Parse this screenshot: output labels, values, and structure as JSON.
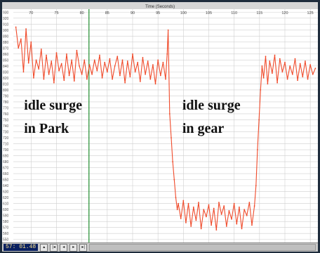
{
  "status_bar": {
    "time": "57: 01.48",
    "buttons": [
      "icon-first",
      "icon-prev",
      "icon-next",
      "icon-last"
    ]
  },
  "colors": {
    "trace": "#f04a2a",
    "marker": "#1e8c2e",
    "grid": "#cfcfcf",
    "frame": "#1e2c3c"
  },
  "chart_data": {
    "type": "line",
    "title": "",
    "xlabel": "Time (Seconds)",
    "ylabel": "",
    "x_ticks": [
      70,
      75,
      80,
      85,
      90,
      95,
      100,
      105,
      110,
      115,
      120,
      125
    ],
    "xlim": [
      66.5,
      126.5
    ],
    "ylim": [
      545,
      935
    ],
    "y_ticks": [
      550,
      560,
      570,
      580,
      590,
      600,
      610,
      620,
      630,
      640,
      650,
      660,
      670,
      680,
      690,
      700,
      710,
      720,
      730,
      740,
      750,
      760,
      770,
      780,
      790,
      800,
      810,
      820,
      830,
      840,
      850,
      860,
      870,
      880,
      890,
      900,
      910,
      920,
      930
    ],
    "grid": true,
    "cursor_x": 81.4,
    "annotations": [
      {
        "text": "idle surge",
        "x": 68.6,
        "y": 767
      },
      {
        "text": "in Park",
        "x": 68.6,
        "y": 728
      },
      {
        "text": "idle surge",
        "x": 99.8,
        "y": 767
      },
      {
        "text": "in gear",
        "x": 99.8,
        "y": 728
      }
    ],
    "series": [
      {
        "x": [
          67.0,
          67.5,
          68.0,
          68.5,
          69.0,
          69.5,
          70.0,
          70.5,
          71.0,
          71.5,
          72.0,
          72.5,
          73.0,
          73.5,
          74.0,
          74.5,
          75.0,
          75.5,
          76.0,
          76.5,
          77.0,
          77.5,
          78.0,
          78.5,
          79.0,
          79.5,
          80.0,
          80.5,
          81.0,
          81.5,
          82.0,
          82.5,
          83.0,
          83.5,
          84.0,
          84.5,
          85.0,
          85.5,
          86.0,
          86.5,
          87.0,
          87.5,
          88.0,
          88.5,
          89.0,
          89.5,
          90.0,
          90.5,
          91.0,
          91.5,
          92.0,
          92.5,
          93.0,
          93.5,
          94.0,
          94.5,
          95.0,
          95.5,
          96.0,
          96.5,
          96.8,
          97.0,
          97.3,
          97.6,
          97.9,
          98.2,
          98.5,
          98.8,
          99.0,
          99.5,
          100.0,
          100.5,
          101.0,
          101.5,
          102.0,
          102.5,
          103.0,
          103.5,
          104.0,
          104.5,
          105.0,
          105.5,
          106.0,
          106.5,
          107.0,
          107.5,
          108.0,
          108.5,
          109.0,
          109.5,
          110.0,
          110.5,
          111.0,
          111.5,
          112.0,
          112.5,
          113.0,
          113.5,
          114.0,
          114.3,
          114.6,
          114.9,
          115.2,
          115.5,
          115.8,
          116.2,
          116.6,
          117.0,
          117.5,
          118.0,
          118.5,
          119.0,
          119.5,
          120.0,
          120.5,
          121.0,
          121.5,
          122.0,
          122.5,
          123.0,
          123.5,
          124.0,
          124.5,
          125.0,
          125.5,
          126.0
        ],
        "y": [
          905,
          870,
          885,
          830,
          902,
          845,
          880,
          820,
          850,
          835,
          868,
          818,
          858,
          826,
          848,
          812,
          862,
          832,
          844,
          816,
          860,
          824,
          850,
          815,
          866,
          840,
          826,
          850,
          818,
          842,
          826,
          850,
          832,
          858,
          820,
          846,
          830,
          852,
          818,
          840,
          856,
          824,
          850,
          812,
          848,
          822,
          860,
          830,
          846,
          814,
          854,
          826,
          848,
          818,
          842,
          810,
          850,
          824,
          846,
          818,
          860,
          900,
          760,
          720,
          680,
          650,
          620,
          600,
          610,
          585,
          615,
          578,
          610,
          572,
          604,
          582,
          612,
          568,
          600,
          588,
          608,
          574,
          602,
          566,
          612,
          592,
          606,
          572,
          598,
          584,
          610,
          576,
          604,
          568,
          600,
          590,
          612,
          574,
          606,
          640,
          700,
          750,
          800,
          840,
          820,
          856,
          810,
          848,
          828,
          858,
          812,
          852,
          830,
          846,
          818,
          840,
          826,
          852,
          816,
          844,
          822,
          848,
          818,
          842,
          826,
          836
        ]
      }
    ]
  }
}
